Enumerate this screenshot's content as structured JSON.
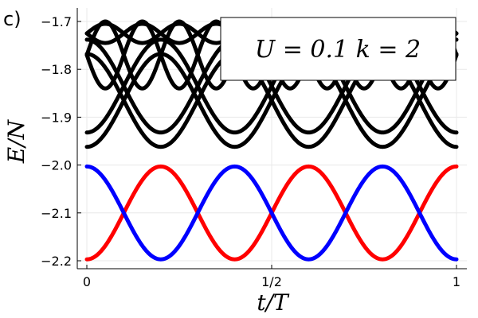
{
  "chart_data": {
    "type": "line",
    "panel_label": "c)",
    "annotation": "U = 0.1 k = 2",
    "xlabel": "t/T",
    "ylabel": "E/N",
    "xlim": [
      0,
      1
    ],
    "ylim": [
      -2.21,
      -1.685
    ],
    "x_ticks": [
      {
        "value": 0,
        "label": "0"
      },
      {
        "value": 0.5,
        "label": "1/2"
      },
      {
        "value": 1,
        "label": "1"
      }
    ],
    "y_ticks": [
      {
        "value": -1.7,
        "label": "-1.7"
      },
      {
        "value": -1.8,
        "label": "-1.8"
      },
      {
        "value": -1.9,
        "label": "-1.9"
      },
      {
        "value": -2.0,
        "label": "-2.0"
      },
      {
        "value": -2.1,
        "label": "-2.1"
      },
      {
        "value": -2.2,
        "label": "-2.2"
      }
    ],
    "grid": true,
    "colors": {
      "red": "#ff0000",
      "blue": "#0000ff",
      "black": "#000000"
    },
    "series": [
      {
        "color": "#ff0000",
        "center": -2.1,
        "amplitude": 0.097,
        "cycles": 2.5,
        "phase_deg": 180
      },
      {
        "color": "#0000ff",
        "center": -2.1,
        "amplitude": 0.097,
        "cycles": 2.5,
        "phase_deg": 0
      },
      {
        "color": "#000000",
        "center": -1.865,
        "amplitude": 0.097,
        "cycles": 2.5,
        "phase_deg": 180
      },
      {
        "color": "#000000",
        "center": -1.865,
        "amplitude": 0.097,
        "cycles": 2.5,
        "phase_deg": 0
      },
      {
        "color": "#000000",
        "center": -1.835,
        "amplitude": 0.097,
        "cycles": 2.5,
        "phase_deg": 180
      },
      {
        "color": "#000000",
        "center": -1.835,
        "amplitude": 0.097,
        "cycles": 2.5,
        "phase_deg": 0
      },
      {
        "color": "#000000",
        "center": -1.77,
        "amplitude": 0.07,
        "cycles": 5,
        "phase_deg": 90
      },
      {
        "color": "#000000",
        "center": -1.77,
        "amplitude": 0.07,
        "cycles": 5,
        "phase_deg": 270
      },
      {
        "color": "#000000",
        "center": -1.725,
        "amplitude": 0.02,
        "cycles": 5,
        "phase_deg": 90
      },
      {
        "color": "#000000",
        "center": -1.725,
        "amplitude": 0.02,
        "cycles": 5,
        "phase_deg": 270
      }
    ]
  }
}
